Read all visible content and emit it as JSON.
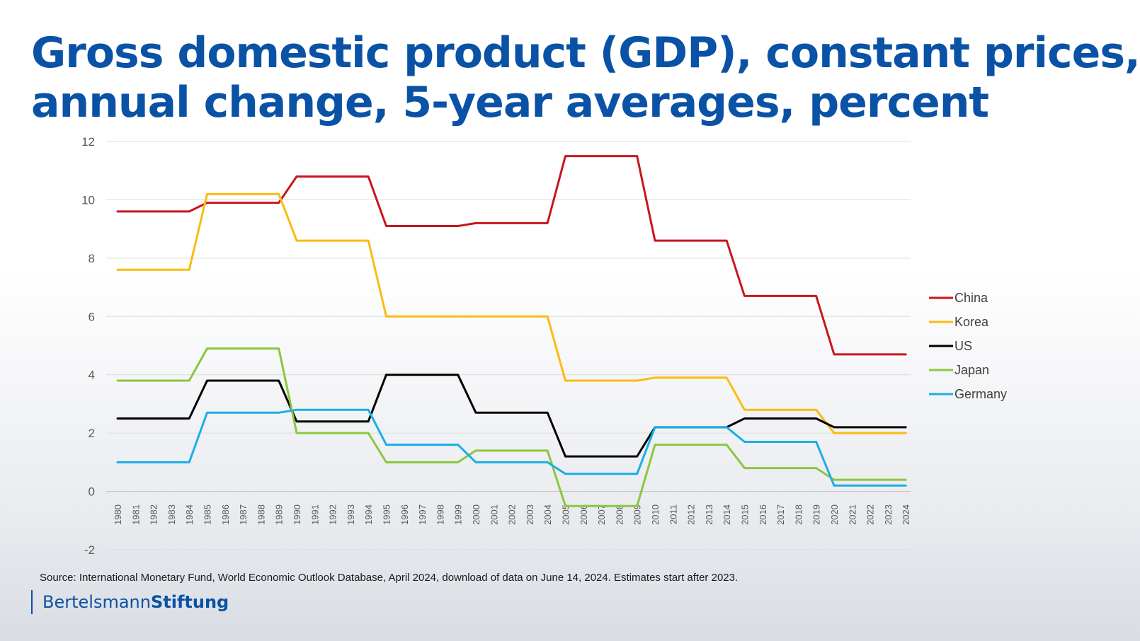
{
  "title_lines": [
    "Gross domestic product (GDP), constant prices,",
    "annual change, 5-year averages, percent"
  ],
  "source": "Source: International Monetary Fund, World Economic Outlook Database,  April 2024, download of data on June 14, 2024. Estimates start after 2023.",
  "logo": {
    "part1": "Bertelsmann",
    "part2": "Stiftung"
  },
  "chart_data": {
    "type": "line",
    "title": "Gross domestic product (GDP), constant prices, annual change, 5-year averages, percent",
    "ylim": [
      -2,
      12
    ],
    "yticks": [
      -2,
      0,
      2,
      4,
      6,
      8,
      10,
      12
    ],
    "grid": true,
    "legend_position": "right",
    "x": [
      "1980",
      "1981",
      "1982",
      "1983",
      "1984",
      "1985",
      "1986",
      "1987",
      "1988",
      "1989",
      "1990",
      "1991",
      "1992",
      "1993",
      "1994",
      "1995",
      "1996",
      "1997",
      "1998",
      "1999",
      "2000",
      "2001",
      "2002",
      "2003",
      "2004",
      "2005",
      "2006",
      "2007",
      "2008",
      "2009",
      "2010",
      "2011",
      "2012",
      "2013",
      "2014",
      "2015",
      "2016",
      "2017",
      "2018",
      "2019",
      "2020",
      "2021",
      "2022",
      "2023",
      "2024"
    ],
    "series": [
      {
        "name": "China",
        "color": "#c8161d",
        "values": [
          9.6,
          9.6,
          9.6,
          9.6,
          9.6,
          9.9,
          9.9,
          9.9,
          9.9,
          9.9,
          10.8,
          10.8,
          10.8,
          10.8,
          10.8,
          9.1,
          9.1,
          9.1,
          9.1,
          9.1,
          9.2,
          9.2,
          9.2,
          9.2,
          9.2,
          11.5,
          11.5,
          11.5,
          11.5,
          11.5,
          8.6,
          8.6,
          8.6,
          8.6,
          8.6,
          6.7,
          6.7,
          6.7,
          6.7,
          6.7,
          4.7,
          4.7,
          4.7,
          4.7,
          4.7
        ]
      },
      {
        "name": "Korea",
        "color": "#fbbb10",
        "values": [
          7.6,
          7.6,
          7.6,
          7.6,
          7.6,
          10.2,
          10.2,
          10.2,
          10.2,
          10.2,
          8.6,
          8.6,
          8.6,
          8.6,
          8.6,
          6.0,
          6.0,
          6.0,
          6.0,
          6.0,
          6.0,
          6.0,
          6.0,
          6.0,
          6.0,
          3.8,
          3.8,
          3.8,
          3.8,
          3.8,
          3.9,
          3.9,
          3.9,
          3.9,
          3.9,
          2.8,
          2.8,
          2.8,
          2.8,
          2.8,
          2.0,
          2.0,
          2.0,
          2.0,
          2.0
        ]
      },
      {
        "name": "US",
        "color": "#000000",
        "values": [
          2.5,
          2.5,
          2.5,
          2.5,
          2.5,
          3.8,
          3.8,
          3.8,
          3.8,
          3.8,
          2.4,
          2.4,
          2.4,
          2.4,
          2.4,
          4.0,
          4.0,
          4.0,
          4.0,
          4.0,
          2.7,
          2.7,
          2.7,
          2.7,
          2.7,
          1.2,
          1.2,
          1.2,
          1.2,
          1.2,
          2.2,
          2.2,
          2.2,
          2.2,
          2.2,
          2.5,
          2.5,
          2.5,
          2.5,
          2.5,
          2.2,
          2.2,
          2.2,
          2.2,
          2.2
        ]
      },
      {
        "name": "Japan",
        "color": "#8cc63e",
        "values": [
          3.8,
          3.8,
          3.8,
          3.8,
          3.8,
          4.9,
          4.9,
          4.9,
          4.9,
          4.9,
          2.0,
          2.0,
          2.0,
          2.0,
          2.0,
          1.0,
          1.0,
          1.0,
          1.0,
          1.0,
          1.4,
          1.4,
          1.4,
          1.4,
          1.4,
          -0.5,
          -0.5,
          -0.5,
          -0.5,
          -0.5,
          1.6,
          1.6,
          1.6,
          1.6,
          1.6,
          0.8,
          0.8,
          0.8,
          0.8,
          0.8,
          0.4,
          0.4,
          0.4,
          0.4,
          0.4
        ]
      },
      {
        "name": "Germany",
        "color": "#1aaee5",
        "values": [
          1.0,
          1.0,
          1.0,
          1.0,
          1.0,
          2.7,
          2.7,
          2.7,
          2.7,
          2.7,
          2.8,
          2.8,
          2.8,
          2.8,
          2.8,
          1.6,
          1.6,
          1.6,
          1.6,
          1.6,
          1.0,
          1.0,
          1.0,
          1.0,
          1.0,
          0.6,
          0.6,
          0.6,
          0.6,
          0.6,
          2.2,
          2.2,
          2.2,
          2.2,
          2.2,
          1.7,
          1.7,
          1.7,
          1.7,
          1.7,
          0.2,
          0.2,
          0.2,
          0.2,
          0.2
        ]
      }
    ]
  }
}
